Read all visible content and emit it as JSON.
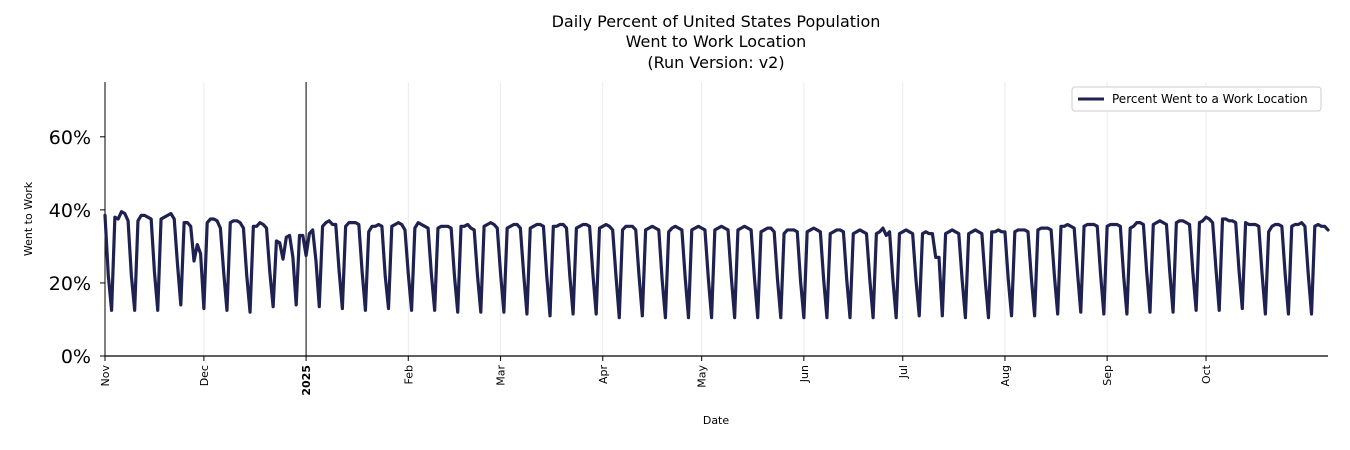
{
  "chart_data": {
    "type": "line",
    "title": [
      "Daily Percent of United States Population",
      "Went to Work Location",
      "(Run Version: v2)"
    ],
    "xlabel": "Date",
    "ylabel": "Went to Work",
    "ylim": [
      0,
      75
    ],
    "yticks": [
      {
        "value": 0,
        "label": "0%"
      },
      {
        "value": 20,
        "label": "20%"
      },
      {
        "value": 40,
        "label": "40%"
      },
      {
        "value": 60,
        "label": "60%"
      }
    ],
    "x_start": "2024-11-01",
    "x_end": "2025-10-31",
    "xticks": [
      {
        "day": 0,
        "label": "Nov",
        "bold": false
      },
      {
        "day": 30,
        "label": "Dec",
        "bold": false
      },
      {
        "day": 61,
        "label": "2025",
        "bold": true
      },
      {
        "day": 92,
        "label": "Feb",
        "bold": false
      },
      {
        "day": 120,
        "label": "Mar",
        "bold": false
      },
      {
        "day": 151,
        "label": "Apr",
        "bold": false
      },
      {
        "day": 181,
        "label": "May",
        "bold": false
      },
      {
        "day": 212,
        "label": "Jun",
        "bold": false
      },
      {
        "day": 242,
        "label": "Jul",
        "bold": false
      },
      {
        "day": 273,
        "label": "Aug",
        "bold": false
      },
      {
        "day": 304,
        "label": "Sep",
        "bold": false
      },
      {
        "day": 334,
        "label": "Oct",
        "bold": false
      }
    ],
    "vline_day": 61,
    "legend": {
      "label": "Percent Went to a Work Location",
      "position": "top-right"
    },
    "grid": "vertical",
    "series": [
      {
        "name": "Percent Went to a Work Location",
        "color": "#1f2150",
        "values": [
          38.5,
          22,
          12.5,
          38,
          37.5,
          39.5,
          39,
          37,
          22,
          12.5,
          37,
          38.5,
          38.5,
          38,
          37.5,
          23,
          12.5,
          37.5,
          38,
          38.5,
          39,
          37.5,
          25,
          14,
          36.5,
          36.5,
          35.5,
          26,
          30.5,
          28,
          13,
          36.5,
          37.5,
          37.5,
          37,
          35,
          23,
          12.5,
          36.5,
          37,
          37,
          36.5,
          35,
          22,
          12,
          35.5,
          35.5,
          36.5,
          36,
          35,
          23,
          13.5,
          31.5,
          31,
          26.5,
          32.5,
          33,
          27,
          14,
          33,
          33,
          27.5,
          33.5,
          34.5,
          26,
          13.5,
          35.5,
          36.5,
          37,
          36,
          36,
          23.5,
          13,
          35.5,
          36.5,
          36.5,
          36.5,
          36,
          23,
          12.5,
          34,
          35.5,
          35.5,
          36,
          35.5,
          22,
          13,
          35.5,
          36,
          36.5,
          36,
          34.5,
          22.5,
          12.5,
          35,
          36.5,
          36,
          35.5,
          35,
          22.5,
          12.5,
          35,
          35.5,
          35.5,
          35.5,
          35,
          22,
          12,
          35.5,
          35.5,
          36,
          35,
          34.5,
          22,
          12,
          35.5,
          36,
          36.5,
          36,
          35,
          22.5,
          12,
          35,
          35.5,
          36,
          36,
          35,
          22.5,
          11.5,
          35,
          35.5,
          36,
          36,
          35.5,
          22,
          11,
          35.5,
          35.5,
          36,
          36,
          35,
          22,
          11.5,
          35,
          35.5,
          36,
          36,
          35.5,
          22.5,
          11.5,
          35,
          35.5,
          36,
          35.5,
          34.5,
          22,
          10.5,
          34.5,
          35.5,
          35.5,
          35.5,
          34.5,
          22,
          11,
          34.5,
          35,
          35.5,
          35,
          34.5,
          21,
          10.5,
          34,
          35,
          35.5,
          35,
          34.5,
          21.5,
          10.5,
          34.5,
          35,
          35.5,
          35,
          34.5,
          21.5,
          10.5,
          34.5,
          35,
          35.5,
          35,
          34.5,
          21.5,
          10.5,
          34.5,
          35,
          35.5,
          35,
          34.5,
          21.5,
          10.5,
          34,
          34.5,
          35,
          35,
          34,
          21,
          10.5,
          33.5,
          34.5,
          34.5,
          34.5,
          34,
          20.5,
          10.5,
          34,
          34.5,
          35,
          34.5,
          34,
          21,
          10.5,
          33.5,
          34,
          34.5,
          34.5,
          34,
          21,
          10.5,
          33.5,
          34,
          34.5,
          34,
          33.5,
          21,
          10.5,
          33.5,
          34,
          35,
          33,
          34,
          21,
          10.5,
          33.5,
          34,
          34.5,
          34,
          33.5,
          21,
          11,
          33.5,
          34,
          33.5,
          33.5,
          27,
          27,
          11,
          33.5,
          34,
          34.5,
          34,
          33.5,
          21,
          10.5,
          33.5,
          34,
          34.5,
          34,
          33.5,
          21,
          10.5,
          34,
          34,
          34.5,
          34,
          34,
          21,
          11,
          34,
          34.5,
          34.5,
          34.5,
          34,
          21.5,
          11,
          34.5,
          35,
          35,
          35,
          34.5,
          22,
          11.5,
          35.5,
          35.5,
          36,
          35.5,
          35,
          23,
          12,
          35.5,
          36,
          36,
          36,
          35.5,
          22.5,
          11.5,
          35.5,
          36,
          36,
          36,
          35.5,
          22,
          11.5,
          35,
          35.5,
          36.5,
          36.5,
          36,
          23,
          12,
          36,
          36.5,
          37,
          36.5,
          36,
          23,
          12,
          36.5,
          37,
          37,
          36.5,
          36,
          23,
          12.5,
          36.5,
          37,
          38,
          37.5,
          36.5,
          24,
          12.5,
          37.5,
          37.5,
          37,
          37,
          36.5,
          23.5,
          13,
          36.5,
          36,
          36,
          36,
          35.5,
          22.5,
          11.5,
          34,
          35.5,
          36,
          36,
          35.5,
          22.5,
          11.5,
          35.5,
          36,
          36,
          36.5,
          35.5,
          22.5,
          11.5,
          35.5,
          36,
          35.5,
          35.5,
          34.5
        ]
      }
    ]
  }
}
